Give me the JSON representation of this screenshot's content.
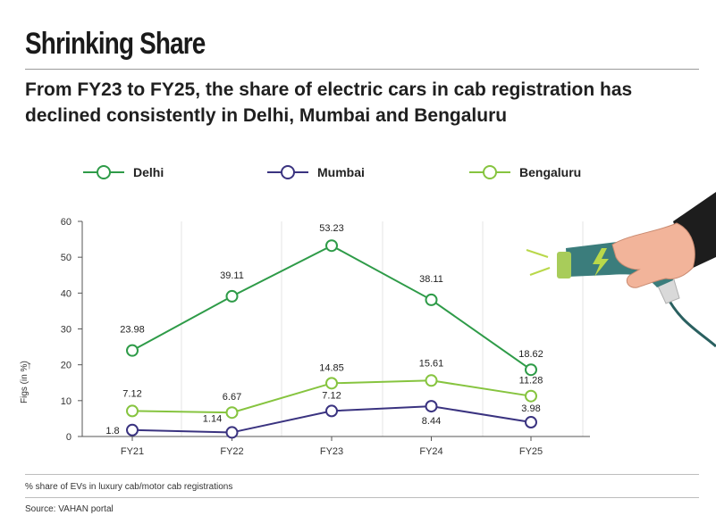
{
  "header": {
    "title": "Shrinking Share",
    "subtitle": "From FY23 to FY25, the share of electric cars in cab registration has declined consistently in Delhi, Mumbai and Bengaluru"
  },
  "footer": {
    "note": "% share of EVs in luxury cab/motor cab registrations",
    "source": "Source: VAHAN portal"
  },
  "colors": {
    "delhi": "#2e9b48",
    "mumbai": "#3a3380",
    "bengaluru": "#86c43f",
    "axis": "#555555",
    "grid": "#e4e4e4"
  },
  "chart_data": {
    "type": "line",
    "categories": [
      "FY21",
      "FY22",
      "FY23",
      "FY24",
      "FY25"
    ],
    "ylabel": "Figs (in %)",
    "ylim": [
      0,
      60
    ],
    "yticks": [
      0,
      10,
      20,
      30,
      40,
      50,
      60
    ],
    "grid": true,
    "legend_position": "top",
    "series": [
      {
        "name": "Delhi",
        "color": "#2e9b48",
        "values": [
          23.98,
          39.11,
          53.23,
          38.11,
          18.62
        ],
        "labels": [
          "23.98",
          "39.11",
          "53.23",
          "38.11",
          "18.62"
        ]
      },
      {
        "name": "Mumbai",
        "color": "#3a3380",
        "values": [
          1.8,
          1.14,
          7.12,
          8.44,
          3.98
        ],
        "labels": [
          "1.8",
          "1.14",
          "7.12",
          "8.44",
          "3.98"
        ]
      },
      {
        "name": "Bengaluru",
        "color": "#86c43f",
        "values": [
          7.12,
          6.67,
          14.85,
          15.61,
          11.28
        ],
        "labels": [
          "7.12",
          "6.67",
          "14.85",
          "15.61",
          "11.28"
        ]
      }
    ]
  }
}
